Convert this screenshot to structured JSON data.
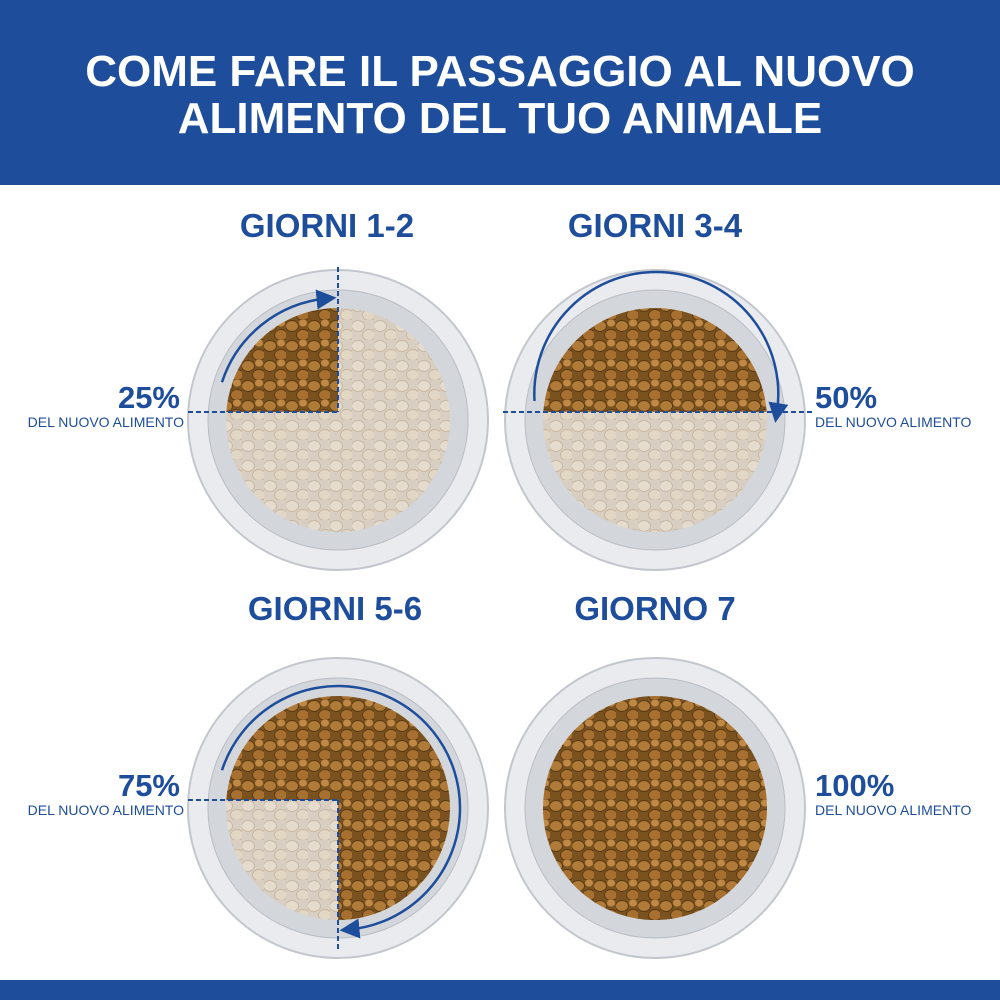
{
  "header": {
    "title_lines": [
      "COME FARE IL PASSAGGIO AL NUOVO",
      "ALIMENTO DEL TUO ANIMALE"
    ]
  },
  "steps": [
    {
      "title": "GIORNI 1-2",
      "percent": "25%",
      "caption": "DEL NUOVO ALIMENTO"
    },
    {
      "title": "GIORNI 3-4",
      "percent": "50%",
      "caption": "DEL NUOVO ALIMENTO"
    },
    {
      "title": "GIORNI 5-6",
      "percent": "75%",
      "caption": "DEL NUOVO ALIMENTO"
    },
    {
      "title": "GIORNO 7",
      "percent": "100%",
      "caption": "DEL NUOVO ALIMENTO"
    }
  ]
}
